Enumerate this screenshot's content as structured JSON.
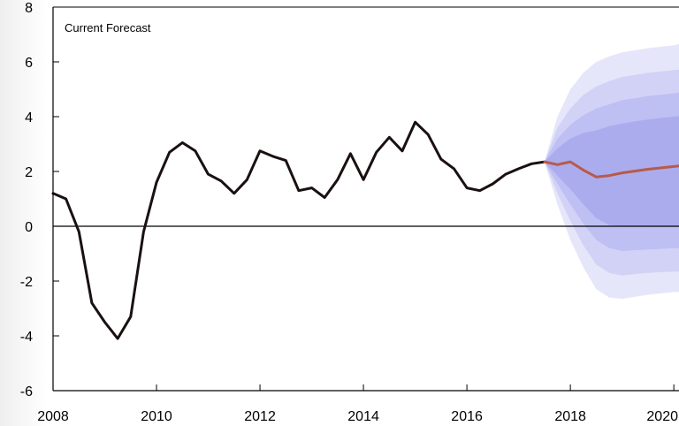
{
  "chart_data": {
    "type": "line",
    "title": "Current Forecast",
    "xlabel": "",
    "ylabel": "",
    "xlim": [
      2008,
      2020.1
    ],
    "ylim": [
      -6,
      8
    ],
    "x_ticks": [
      2008,
      2010,
      2012,
      2014,
      2016,
      2018,
      2020
    ],
    "x_tick_labels": [
      "2008",
      "2010",
      "2012",
      "2014",
      "2016",
      "2018",
      "2020"
    ],
    "y_ticks": [
      8,
      6,
      4,
      2,
      0,
      -2,
      -4,
      -6
    ],
    "y_tick_labels": [
      "8",
      "6",
      "4",
      "2",
      "0",
      "-2",
      "-4",
      "-6"
    ],
    "grid": false,
    "zero_line": true,
    "colors": {
      "historical": "#1a1010",
      "forecast": "#b85a4a",
      "fan": "#8c8fe8",
      "axis": "#000000"
    },
    "series": [
      {
        "role": "historical",
        "points": [
          [
            2008.0,
            1.2
          ],
          [
            2008.25,
            1.0
          ],
          [
            2008.5,
            -0.2
          ],
          [
            2008.75,
            -2.8
          ],
          [
            2009.0,
            -3.5
          ],
          [
            2009.25,
            -4.1
          ],
          [
            2009.5,
            -3.3
          ],
          [
            2009.75,
            -0.2
          ],
          [
            2010.0,
            1.6
          ],
          [
            2010.25,
            2.7
          ],
          [
            2010.5,
            3.05
          ],
          [
            2010.75,
            2.75
          ],
          [
            2011.0,
            1.9
          ],
          [
            2011.25,
            1.65
          ],
          [
            2011.5,
            1.2
          ],
          [
            2011.75,
            1.7
          ],
          [
            2012.0,
            2.75
          ],
          [
            2012.25,
            2.55
          ],
          [
            2012.5,
            2.4
          ],
          [
            2012.75,
            1.3
          ],
          [
            2013.0,
            1.4
          ],
          [
            2013.25,
            1.05
          ],
          [
            2013.5,
            1.7
          ],
          [
            2013.75,
            2.65
          ],
          [
            2014.0,
            1.7
          ],
          [
            2014.25,
            2.7
          ],
          [
            2014.5,
            3.25
          ],
          [
            2014.75,
            2.75
          ],
          [
            2015.0,
            3.8
          ],
          [
            2015.25,
            3.35
          ],
          [
            2015.5,
            2.45
          ],
          [
            2015.75,
            2.1
          ],
          [
            2016.0,
            1.4
          ],
          [
            2016.25,
            1.3
          ],
          [
            2016.5,
            1.55
          ],
          [
            2016.75,
            1.9
          ],
          [
            2017.0,
            2.1
          ],
          [
            2017.25,
            2.28
          ],
          [
            2017.5,
            2.35
          ]
        ]
      },
      {
        "role": "forecast",
        "points": [
          [
            2017.5,
            2.35
          ],
          [
            2017.75,
            2.25
          ],
          [
            2018.0,
            2.35
          ],
          [
            2018.25,
            2.05
          ],
          [
            2018.5,
            1.8
          ],
          [
            2018.75,
            1.85
          ],
          [
            2019.0,
            1.95
          ],
          [
            2019.5,
            2.08
          ],
          [
            2020.0,
            2.18
          ],
          [
            2020.1,
            2.2
          ]
        ]
      }
    ],
    "fan_bands": {
      "x": [
        2017.5,
        2017.75,
        2018.0,
        2018.25,
        2018.5,
        2018.75,
        2019.0,
        2019.5,
        2020.0,
        2020.1
      ],
      "bands": [
        {
          "lower": [
            2.35,
            0.8,
            -0.5,
            -1.5,
            -2.3,
            -2.6,
            -2.65,
            -2.5,
            -2.4,
            -2.4
          ],
          "upper": [
            2.35,
            4.0,
            5.0,
            5.6,
            6.0,
            6.2,
            6.35,
            6.5,
            6.6,
            6.65
          ]
        },
        {
          "lower": [
            2.35,
            1.2,
            0.2,
            -0.7,
            -1.4,
            -1.7,
            -1.8,
            -1.7,
            -1.65,
            -1.65
          ],
          "upper": [
            2.35,
            3.6,
            4.3,
            4.8,
            5.1,
            5.3,
            5.45,
            5.6,
            5.7,
            5.72
          ]
        },
        {
          "lower": [
            2.35,
            1.55,
            0.8,
            0.1,
            -0.5,
            -0.8,
            -0.9,
            -0.85,
            -0.8,
            -0.8
          ],
          "upper": [
            2.35,
            3.2,
            3.7,
            4.05,
            4.3,
            4.45,
            4.6,
            4.75,
            4.85,
            4.88
          ]
        },
        {
          "lower": [
            2.35,
            1.85,
            1.35,
            0.8,
            0.3,
            0.05,
            0.0,
            -0.02,
            -0.02,
            -0.02
          ],
          "upper": [
            2.35,
            2.85,
            3.2,
            3.4,
            3.5,
            3.65,
            3.75,
            3.9,
            4.0,
            4.02
          ]
        }
      ]
    }
  }
}
